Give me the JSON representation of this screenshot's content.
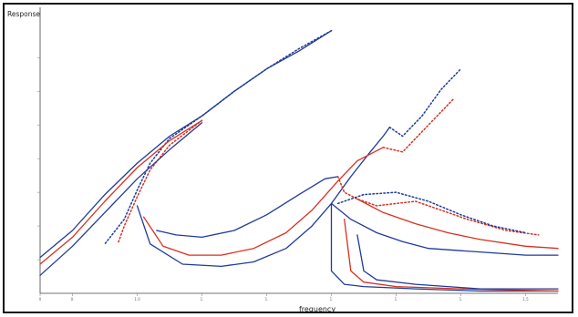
{
  "chart_data": {
    "type": "line",
    "xlabel": "frequency",
    "ylabel": "Response",
    "xlim": [
      0.8,
      1.6
    ],
    "ylim": [
      0,
      1.25
    ],
    "x_ticks": [
      0.8,
      0.85,
      0.95,
      1.05,
      1.15,
      1.25,
      1.35,
      1.45,
      1.55
    ],
    "x_tick_labels": [
      "0",
      "0.",
      "1.0",
      "1.",
      "1.",
      "1.",
      "1.",
      "1.",
      "1.5"
    ],
    "y_ticks": [
      0.15,
      0.3,
      0.45,
      0.6,
      0.75,
      0.9,
      1.05
    ],
    "y_tick_labels": [
      "",
      "",
      "",
      "",
      "",
      "",
      ""
    ],
    "grid": false,
    "legend": null,
    "series": [
      {
        "color": "#1f3a9a",
        "style": "solid",
        "points": [
          [
            0.8,
            0.16
          ],
          [
            0.85,
            0.28
          ],
          [
            0.9,
            0.44
          ],
          [
            0.95,
            0.58
          ],
          [
            1.0,
            0.7
          ],
          [
            1.05,
            0.79
          ],
          [
            1.1,
            0.9
          ],
          [
            1.15,
            1.0
          ],
          [
            1.2,
            1.08
          ],
          [
            1.25,
            1.17
          ]
        ]
      },
      {
        "color": "#1f3a9a",
        "style": "dashed",
        "points": [
          [
            1.25,
            1.17
          ],
          [
            1.2,
            1.09
          ],
          [
            1.15,
            1.0
          ],
          [
            1.1,
            0.9
          ],
          [
            1.05,
            0.79
          ],
          [
            1.0,
            0.69
          ],
          [
            0.97,
            0.58
          ],
          [
            0.95,
            0.46
          ],
          [
            0.93,
            0.33
          ],
          [
            0.9,
            0.22
          ]
        ]
      },
      {
        "color": "#d8301f",
        "style": "solid",
        "points": [
          [
            0.8,
            0.13
          ],
          [
            0.85,
            0.25
          ],
          [
            0.9,
            0.41
          ],
          [
            0.95,
            0.56
          ],
          [
            1.0,
            0.68
          ],
          [
            1.05,
            0.77
          ]
        ]
      },
      {
        "color": "#d8301f",
        "style": "dashed",
        "points": [
          [
            1.05,
            0.77
          ],
          [
            1.0,
            0.66
          ],
          [
            0.97,
            0.55
          ],
          [
            0.95,
            0.43
          ],
          [
            0.93,
            0.3
          ],
          [
            0.92,
            0.22
          ]
        ]
      },
      {
        "color": "#1f3a9a",
        "style": "solid",
        "points": [
          [
            0.8,
            0.08
          ],
          [
            0.85,
            0.21
          ],
          [
            0.9,
            0.36
          ],
          [
            0.95,
            0.51
          ],
          [
            1.0,
            0.64
          ],
          [
            1.05,
            0.76
          ]
        ]
      },
      {
        "color": "#1f3a9a",
        "style": "solid",
        "points": [
          [
            0.95,
            0.39
          ],
          [
            0.97,
            0.22
          ],
          [
            1.02,
            0.13
          ],
          [
            1.08,
            0.12
          ],
          [
            1.13,
            0.14
          ],
          [
            1.18,
            0.2
          ],
          [
            1.22,
            0.3
          ],
          [
            1.25,
            0.4
          ],
          [
            1.28,
            0.52
          ],
          [
            1.31,
            0.63
          ],
          [
            1.33,
            0.7
          ],
          [
            1.34,
            0.74
          ]
        ]
      },
      {
        "color": "#1f3a9a",
        "style": "dashed",
        "points": [
          [
            1.34,
            0.74
          ],
          [
            1.36,
            0.7
          ],
          [
            1.39,
            0.79
          ],
          [
            1.42,
            0.91
          ],
          [
            1.45,
            1.0
          ]
        ]
      },
      {
        "color": "#d8301f",
        "style": "solid",
        "points": [
          [
            0.96,
            0.34
          ],
          [
            0.99,
            0.21
          ],
          [
            1.03,
            0.17
          ],
          [
            1.08,
            0.17
          ],
          [
            1.13,
            0.2
          ],
          [
            1.18,
            0.27
          ],
          [
            1.22,
            0.37
          ],
          [
            1.26,
            0.5
          ],
          [
            1.29,
            0.59
          ],
          [
            1.33,
            0.65
          ]
        ]
      },
      {
        "color": "#d8301f",
        "style": "dashed",
        "points": [
          [
            1.33,
            0.65
          ],
          [
            1.36,
            0.63
          ],
          [
            1.39,
            0.72
          ],
          [
            1.43,
            0.84
          ],
          [
            1.44,
            0.87
          ]
        ]
      },
      {
        "color": "#1f3a9a",
        "style": "solid",
        "points": [
          [
            0.98,
            0.28
          ],
          [
            1.01,
            0.26
          ],
          [
            1.05,
            0.25
          ],
          [
            1.1,
            0.28
          ],
          [
            1.15,
            0.35
          ],
          [
            1.2,
            0.44
          ],
          [
            1.24,
            0.51
          ],
          [
            1.26,
            0.52
          ]
        ]
      },
      {
        "color": "#d8301f",
        "style": "dashed",
        "points": [
          [
            1.26,
            0.52
          ],
          [
            1.27,
            0.45
          ],
          [
            1.29,
            0.42
          ],
          [
            1.32,
            0.39
          ],
          [
            1.35,
            0.4
          ],
          [
            1.38,
            0.41
          ],
          [
            1.41,
            0.38
          ],
          [
            1.46,
            0.33
          ],
          [
            1.52,
            0.28
          ],
          [
            1.57,
            0.26
          ]
        ]
      },
      {
        "color": "#1f3a9a",
        "style": "dashed",
        "points": [
          [
            1.26,
            0.4
          ],
          [
            1.3,
            0.44
          ],
          [
            1.35,
            0.45
          ],
          [
            1.4,
            0.41
          ],
          [
            1.45,
            0.35
          ],
          [
            1.5,
            0.3
          ],
          [
            1.55,
            0.27
          ]
        ]
      },
      {
        "color": "#1f3a9a",
        "style": "solid",
        "points": [
          [
            1.25,
            0.4
          ],
          [
            1.28,
            0.33
          ],
          [
            1.32,
            0.27
          ],
          [
            1.36,
            0.23
          ],
          [
            1.4,
            0.2
          ],
          [
            1.45,
            0.19
          ],
          [
            1.5,
            0.18
          ],
          [
            1.55,
            0.17
          ],
          [
            1.6,
            0.17
          ]
        ]
      },
      {
        "color": "#d8301f",
        "style": "solid",
        "points": [
          [
            1.29,
            0.42
          ],
          [
            1.33,
            0.36
          ],
          [
            1.38,
            0.31
          ],
          [
            1.43,
            0.27
          ],
          [
            1.48,
            0.24
          ],
          [
            1.55,
            0.21
          ],
          [
            1.6,
            0.2
          ]
        ]
      },
      {
        "color": "#1f3a9a",
        "style": "solid",
        "points": [
          [
            1.25,
            0.4
          ],
          [
            1.25,
            0.1
          ],
          [
            1.27,
            0.04
          ],
          [
            1.3,
            0.03
          ],
          [
            1.38,
            0.02
          ],
          [
            1.48,
            0.01
          ],
          [
            1.6,
            0.01
          ]
        ]
      },
      {
        "color": "#d8301f",
        "style": "solid",
        "points": [
          [
            1.27,
            0.33
          ],
          [
            1.28,
            0.1
          ],
          [
            1.3,
            0.05
          ],
          [
            1.35,
            0.03
          ],
          [
            1.45,
            0.02
          ],
          [
            1.6,
            0.01
          ]
        ]
      },
      {
        "color": "#1f3a9a",
        "style": "solid",
        "points": [
          [
            1.29,
            0.26
          ],
          [
            1.3,
            0.1
          ],
          [
            1.32,
            0.06
          ],
          [
            1.38,
            0.04
          ],
          [
            1.48,
            0.02
          ],
          [
            1.6,
            0.02
          ]
        ]
      }
    ]
  }
}
